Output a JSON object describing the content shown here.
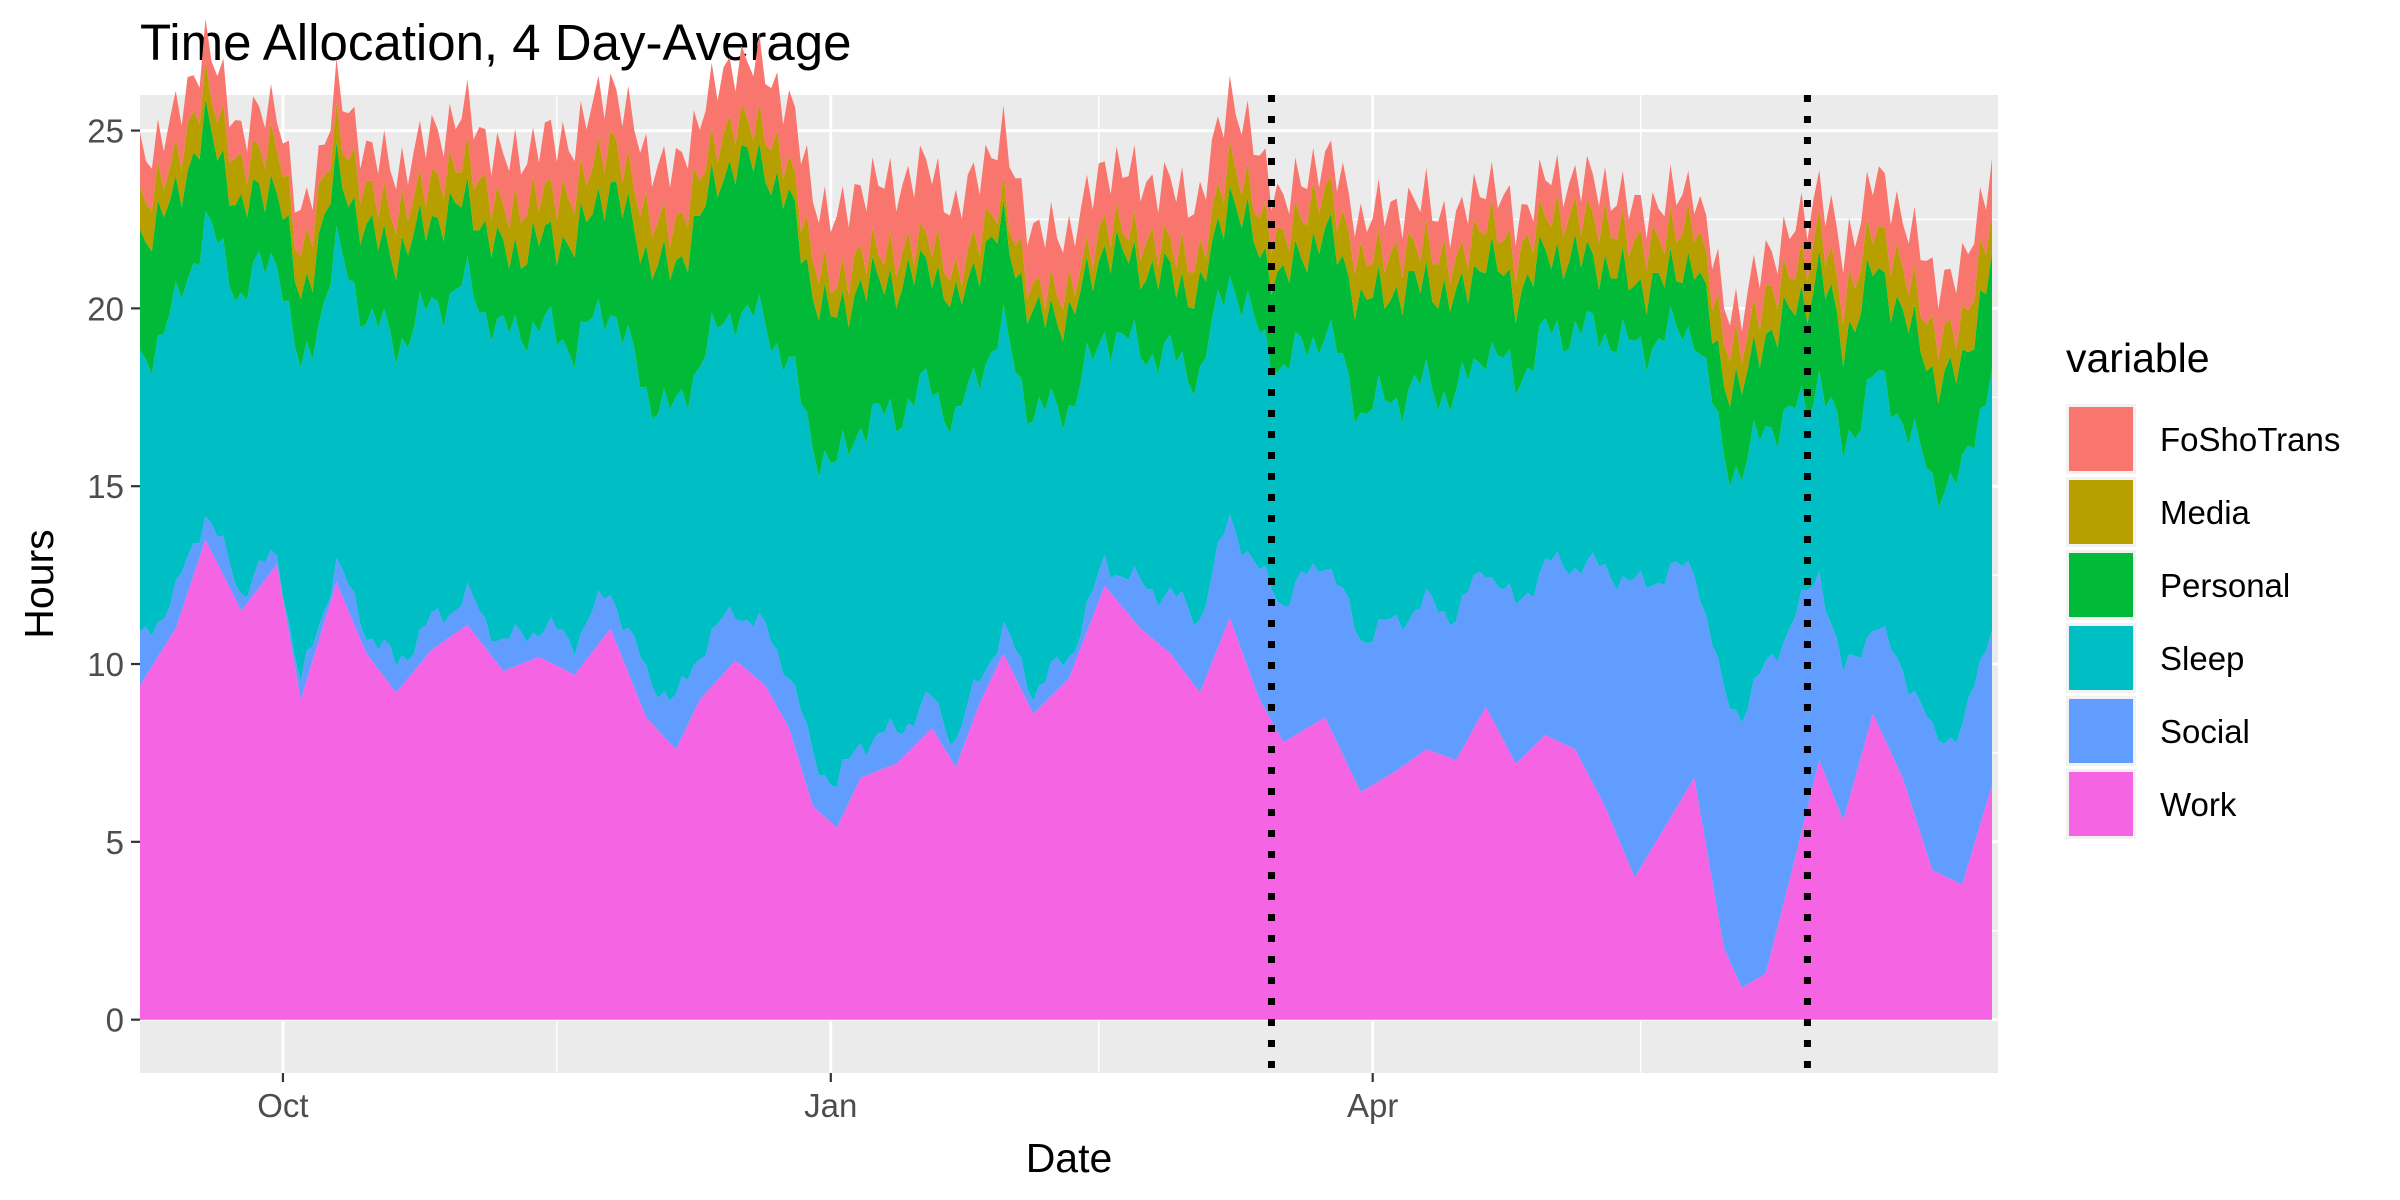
{
  "chart_data": {
    "type": "area",
    "title": "Time Allocation, 4 Day-Average",
    "xlabel": "Date",
    "ylabel": "Hours",
    "stacked": true,
    "ylim": [
      -1.5,
      26
    ],
    "y_ticks": [
      0,
      5,
      10,
      15,
      20,
      25
    ],
    "xlim": [
      "2023-09-07",
      "2024-07-15"
    ],
    "x_ticks": [
      {
        "date": "2023-10-01",
        "label": "Oct"
      },
      {
        "date": "2024-01-01",
        "label": "Jan"
      },
      {
        "date": "2024-04-01",
        "label": "Apr"
      }
    ],
    "x_minor_ticks": [
      "2023-11-16",
      "2024-02-15",
      "2024-05-16"
    ],
    "x_start": "2023-09-07",
    "x_end": "2024-07-14",
    "vlines": [
      "2024-03-15",
      "2024-06-13"
    ],
    "vline_style": "dotted",
    "grid": true,
    "legend": {
      "title": "variable",
      "position": "right"
    },
    "series": [
      {
        "name": "Work",
        "color": "#F564E3",
        "knots": [
          [
            "2023-09-07",
            9.4
          ],
          [
            "2023-09-13",
            11.0
          ],
          [
            "2023-09-18",
            13.5
          ],
          [
            "2023-09-24",
            11.5
          ],
          [
            "2023-09-30",
            12.8
          ],
          [
            "2023-10-04",
            9.0
          ],
          [
            "2023-10-10",
            12.3
          ],
          [
            "2023-10-15",
            10.3
          ],
          [
            "2023-10-20",
            9.2
          ],
          [
            "2023-10-26",
            10.4
          ],
          [
            "2023-11-01",
            11.1
          ],
          [
            "2023-11-07",
            9.8
          ],
          [
            "2023-11-13",
            10.2
          ],
          [
            "2023-11-19",
            9.7
          ],
          [
            "2023-11-25",
            11.0
          ],
          [
            "2023-12-01",
            8.5
          ],
          [
            "2023-12-06",
            7.6
          ],
          [
            "2023-12-10",
            9.0
          ],
          [
            "2023-12-16",
            10.1
          ],
          [
            "2023-12-21",
            9.4
          ],
          [
            "2023-12-25",
            8.2
          ],
          [
            "2023-12-29",
            6.0
          ],
          [
            "2024-01-02",
            5.4
          ],
          [
            "2024-01-06",
            6.8
          ],
          [
            "2024-01-12",
            7.2
          ],
          [
            "2024-01-18",
            8.2
          ],
          [
            "2024-01-22",
            7.1
          ],
          [
            "2024-01-26",
            8.9
          ],
          [
            "2024-01-30",
            10.3
          ],
          [
            "2024-02-04",
            8.6
          ],
          [
            "2024-02-10",
            9.6
          ],
          [
            "2024-02-16",
            12.2
          ],
          [
            "2024-02-22",
            11.0
          ],
          [
            "2024-02-27",
            10.3
          ],
          [
            "2024-03-03",
            9.2
          ],
          [
            "2024-03-08",
            11.3
          ],
          [
            "2024-03-13",
            9.0
          ],
          [
            "2024-03-17",
            7.8
          ],
          [
            "2024-03-24",
            8.5
          ],
          [
            "2024-03-30",
            6.4
          ],
          [
            "2024-04-05",
            7.0
          ],
          [
            "2024-04-10",
            7.6
          ],
          [
            "2024-04-15",
            7.3
          ],
          [
            "2024-04-20",
            8.8
          ],
          [
            "2024-04-25",
            7.2
          ],
          [
            "2024-04-30",
            8.0
          ],
          [
            "2024-05-05",
            7.6
          ],
          [
            "2024-05-10",
            6.0
          ],
          [
            "2024-05-15",
            4.0
          ],
          [
            "2024-05-20",
            5.4
          ],
          [
            "2024-05-25",
            6.8
          ],
          [
            "2024-05-30",
            2.0
          ],
          [
            "2024-06-02",
            0.9
          ],
          [
            "2024-06-06",
            1.3
          ],
          [
            "2024-06-11",
            4.6
          ],
          [
            "2024-06-15",
            7.3
          ],
          [
            "2024-06-19",
            5.6
          ],
          [
            "2024-06-24",
            8.6
          ],
          [
            "2024-06-29",
            6.8
          ],
          [
            "2024-07-04",
            4.2
          ],
          [
            "2024-07-09",
            3.8
          ],
          [
            "2024-07-14",
            6.6
          ]
        ]
      },
      {
        "name": "Social",
        "color": "#619CFF",
        "knots": [
          [
            "2023-09-07",
            1.2
          ],
          [
            "2023-10-01",
            0.3
          ],
          [
            "2023-10-20",
            0.8
          ],
          [
            "2023-11-10",
            0.8
          ],
          [
            "2023-12-05",
            1.3
          ],
          [
            "2023-12-25",
            1.6
          ],
          [
            "2024-01-06",
            1.0
          ],
          [
            "2024-01-26",
            0.7
          ],
          [
            "2024-02-15",
            0.6
          ],
          [
            "2024-03-02",
            2.0
          ],
          [
            "2024-03-15",
            3.8
          ],
          [
            "2024-03-24",
            4.5
          ],
          [
            "2024-04-05",
            4.2
          ],
          [
            "2024-04-20",
            4.0
          ],
          [
            "2024-05-05",
            5.2
          ],
          [
            "2024-05-15",
            8.2
          ],
          [
            "2024-05-25",
            6.0
          ],
          [
            "2024-06-06",
            8.6
          ],
          [
            "2024-06-13",
            6.0
          ],
          [
            "2024-06-24",
            2.5
          ],
          [
            "2024-07-04",
            3.8
          ],
          [
            "2024-07-14",
            4.7
          ]
        ]
      },
      {
        "name": "Sleep",
        "color": "#00BFC4",
        "knots": [
          [
            "2023-09-07",
            7.8
          ],
          [
            "2023-09-30",
            8.5
          ],
          [
            "2023-10-20",
            9.0
          ],
          [
            "2023-11-10",
            8.6
          ],
          [
            "2023-11-30",
            7.9
          ],
          [
            "2023-12-20",
            8.6
          ],
          [
            "2024-01-06",
            9.0
          ],
          [
            "2024-01-26",
            8.8
          ],
          [
            "2024-02-15",
            6.5
          ],
          [
            "2024-03-08",
            6.9
          ],
          [
            "2024-03-15",
            6.6
          ],
          [
            "2024-03-30",
            6.4
          ],
          [
            "2024-04-15",
            6.1
          ],
          [
            "2024-05-05",
            6.6
          ],
          [
            "2024-05-20",
            6.7
          ],
          [
            "2024-06-06",
            6.8
          ],
          [
            "2024-06-13",
            5.3
          ],
          [
            "2024-06-24",
            7.0
          ],
          [
            "2024-07-14",
            7.2
          ]
        ]
      },
      {
        "name": "Personal",
        "color": "#00BA38",
        "knots": [
          [
            "2023-09-07",
            3.5
          ],
          [
            "2023-09-30",
            2.0
          ],
          [
            "2023-10-20",
            2.5
          ],
          [
            "2023-11-10",
            2.2
          ],
          [
            "2023-11-30",
            3.8
          ],
          [
            "2023-12-25",
            4.5
          ],
          [
            "2024-01-15",
            3.5
          ],
          [
            "2024-02-10",
            2.5
          ],
          [
            "2024-03-01",
            2.2
          ],
          [
            "2024-03-15",
            2.4
          ],
          [
            "2024-04-01",
            3.1
          ],
          [
            "2024-04-25",
            2.4
          ],
          [
            "2024-05-20",
            1.6
          ],
          [
            "2024-06-13",
            3.0
          ],
          [
            "2024-07-14",
            3.0
          ]
        ]
      },
      {
        "name": "Media",
        "color": "#B79F00",
        "knots": [
          [
            "2023-09-07",
            1.0
          ],
          [
            "2023-10-01",
            1.2
          ],
          [
            "2023-10-26",
            1.1
          ],
          [
            "2023-11-20",
            1.3
          ],
          [
            "2023-12-15",
            1.1
          ],
          [
            "2024-01-15",
            0.8
          ],
          [
            "2024-02-15",
            0.7
          ],
          [
            "2024-03-08",
            1.0
          ],
          [
            "2024-03-24",
            1.2
          ],
          [
            "2024-04-15",
            1.0
          ],
          [
            "2024-05-10",
            1.2
          ],
          [
            "2024-06-08",
            1.1
          ],
          [
            "2024-06-24",
            1.2
          ],
          [
            "2024-07-14",
            1.2
          ]
        ]
      },
      {
        "name": "FoShoTrans",
        "color": "#F8766D",
        "knots": [
          [
            "2023-09-07",
            1.3
          ],
          [
            "2023-09-30",
            1.0
          ],
          [
            "2023-10-25",
            1.3
          ],
          [
            "2023-11-20",
            1.6
          ],
          [
            "2023-12-20",
            1.7
          ],
          [
            "2024-01-15",
            2.0
          ],
          [
            "2024-02-10",
            1.6
          ],
          [
            "2024-03-01",
            1.7
          ],
          [
            "2024-03-10",
            1.8
          ],
          [
            "2024-03-20",
            0.9
          ],
          [
            "2024-04-05",
            1.3
          ],
          [
            "2024-04-30",
            1.0
          ],
          [
            "2024-05-25",
            1.0
          ],
          [
            "2024-06-13",
            1.2
          ],
          [
            "2024-07-04",
            1.6
          ],
          [
            "2024-07-14",
            1.5
          ]
        ]
      }
    ]
  }
}
